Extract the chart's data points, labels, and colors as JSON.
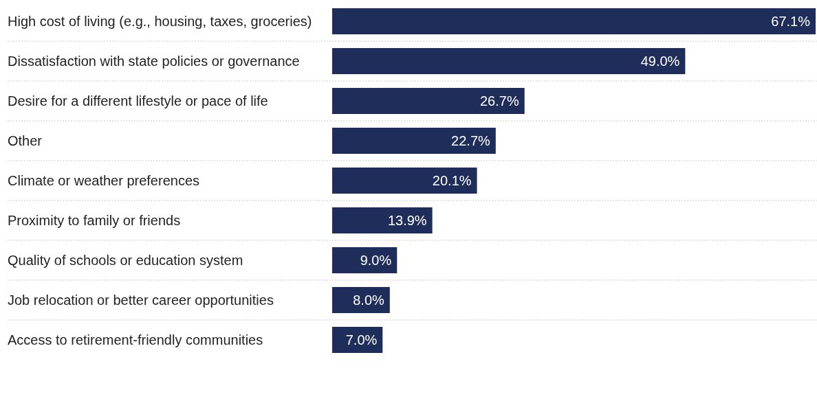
{
  "chart_data": {
    "type": "bar",
    "orientation": "horizontal",
    "categories": [
      "High cost of living (e.g., housing, taxes, groceries)",
      "Dissatisfaction with state policies or governance",
      "Desire for a different lifestyle or pace of life",
      "Other",
      "Climate or weather preferences",
      "Proximity to family or friends",
      "Quality of schools or education system",
      "Job relocation or better career opportunities",
      "Access to retirement-friendly communities"
    ],
    "values": [
      67.1,
      49.0,
      26.7,
      22.7,
      20.1,
      13.9,
      9.0,
      8.0,
      7.0
    ],
    "value_labels": [
      "67.1%",
      "49.0%",
      "26.7%",
      "22.7%",
      "20.1%",
      "13.9%",
      "9.0%",
      "8.0%",
      "7.0%"
    ],
    "color": "#1f2d5a"
  }
}
